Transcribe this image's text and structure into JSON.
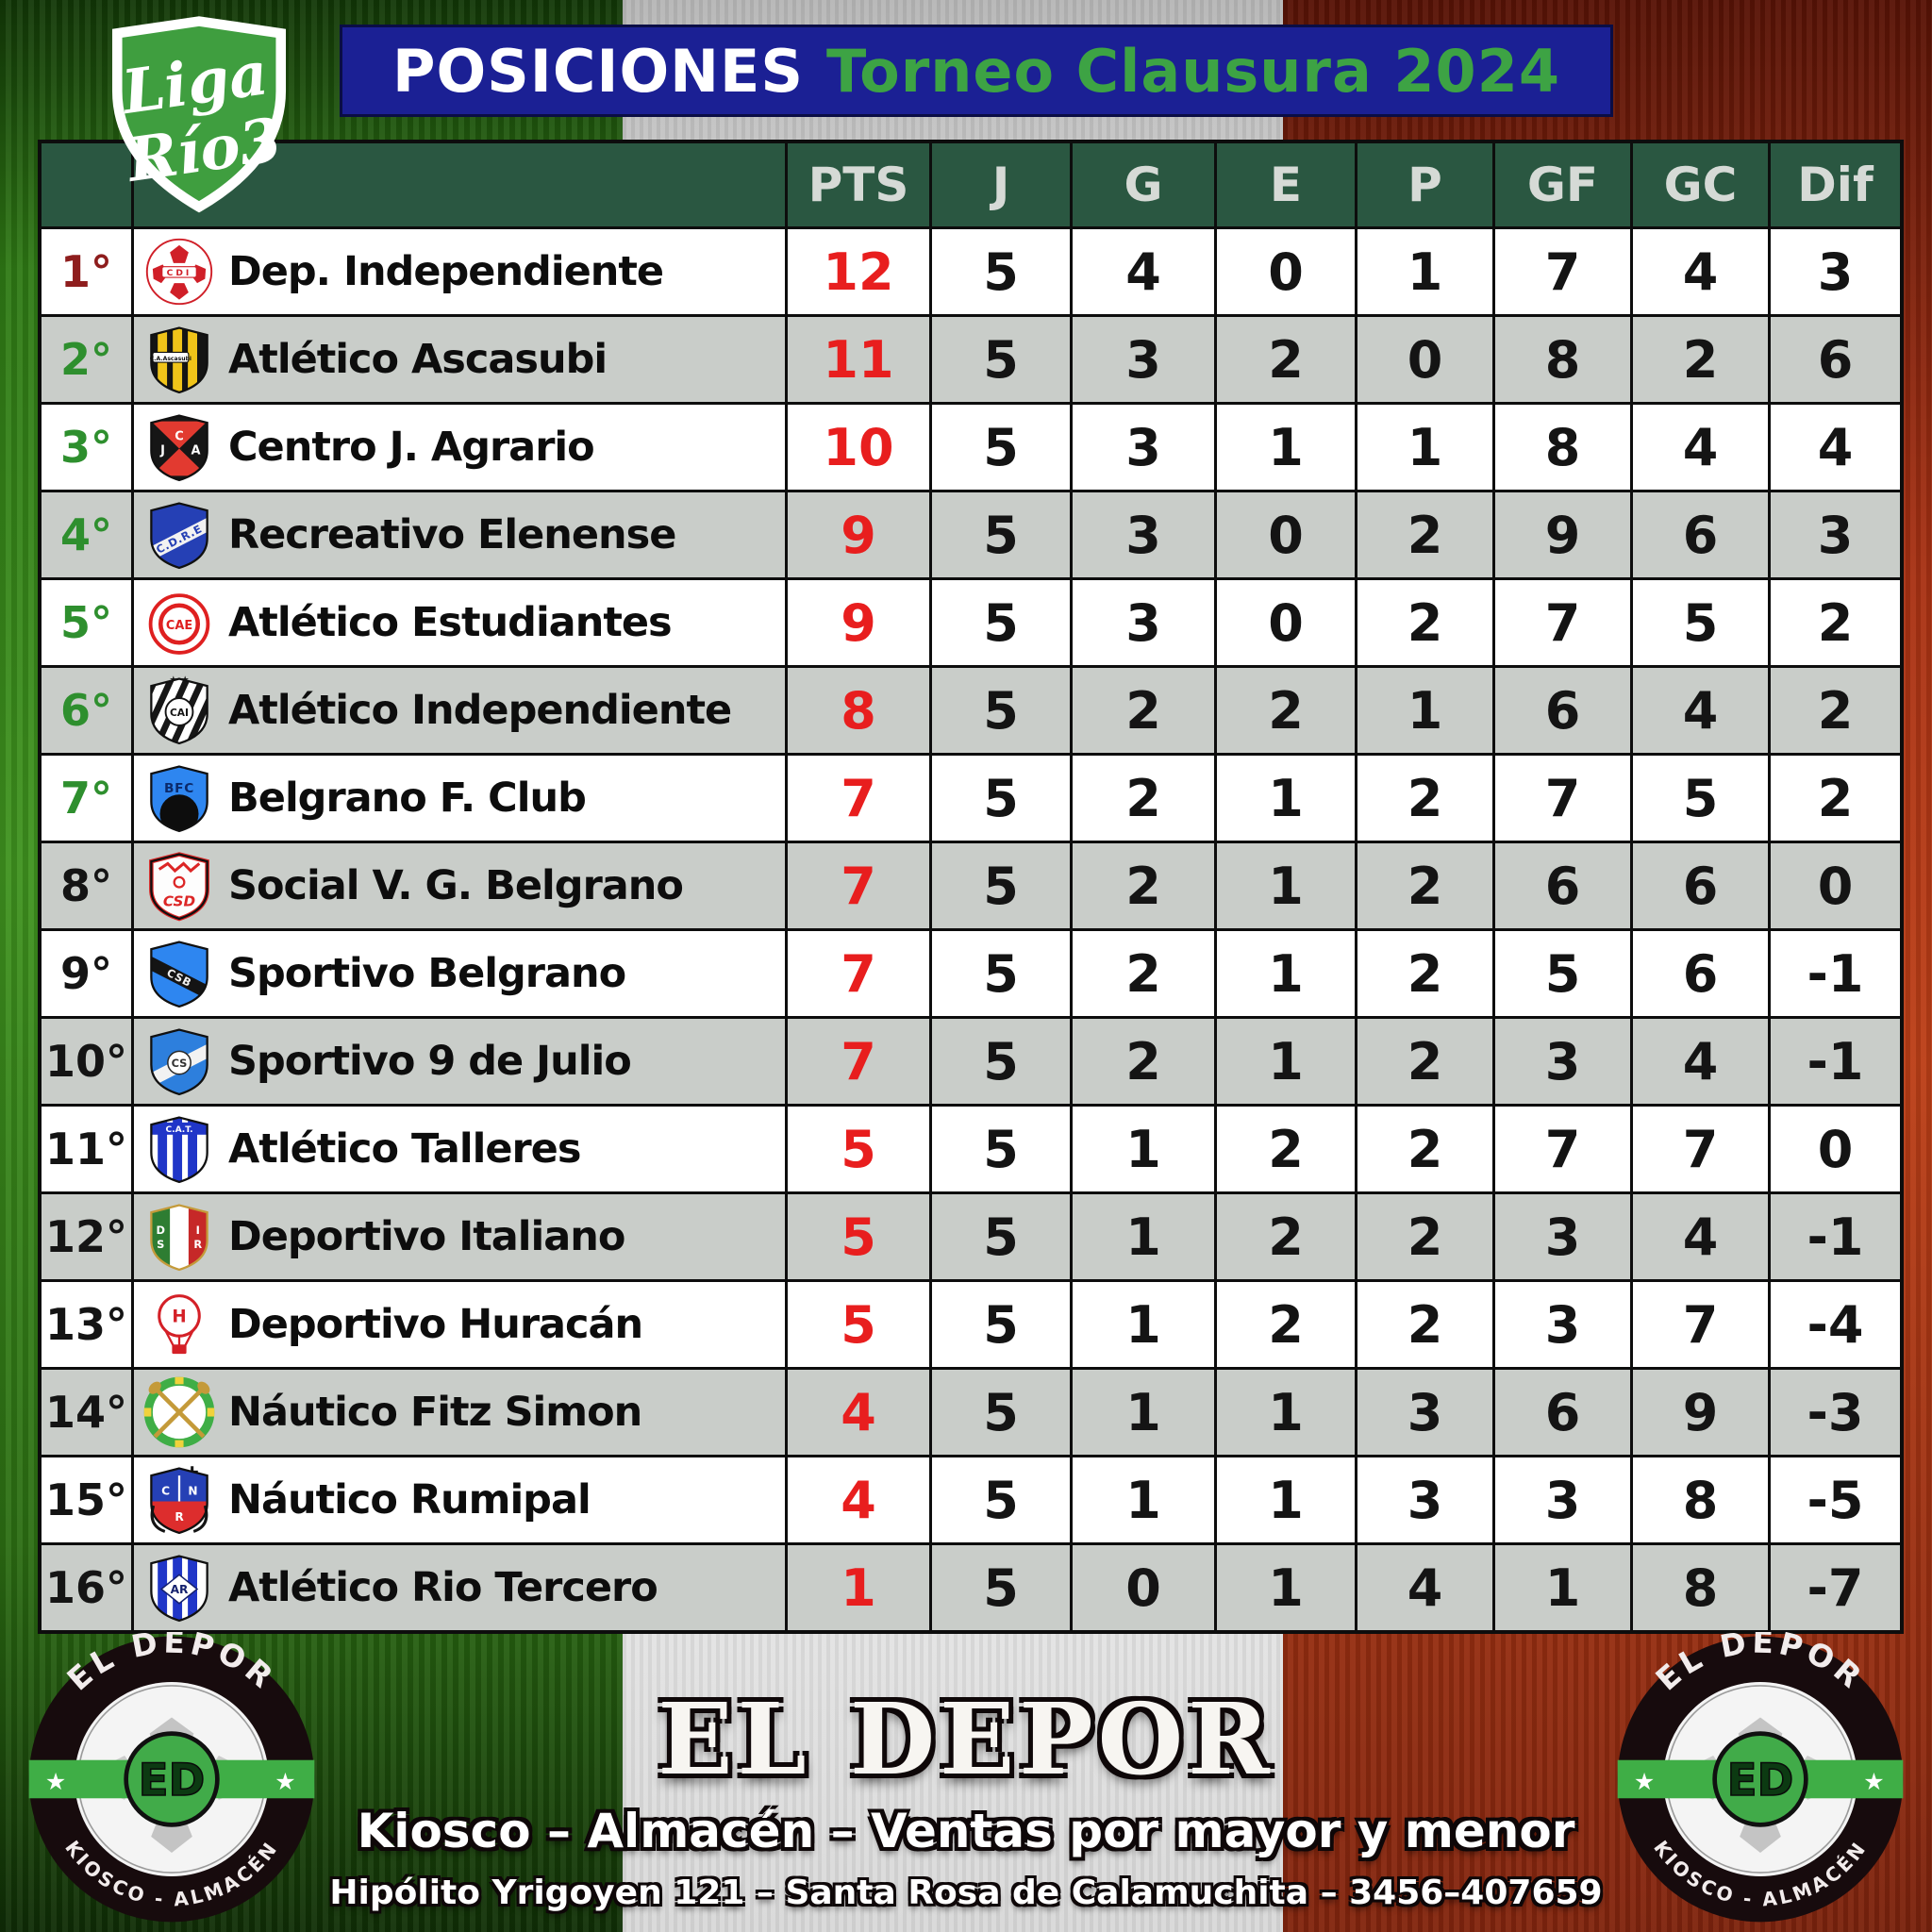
{
  "banner": {
    "title_white": "POSICIONES",
    "title_green": "Torneo Clausura 2024"
  },
  "league_logo": {
    "line1": "Liga",
    "line2": "Río3"
  },
  "table": {
    "headers": [
      "PTS",
      "J",
      "G",
      "E",
      "P",
      "GF",
      "GC",
      "Dif"
    ],
    "rows": [
      {
        "pos": "1°",
        "pos_color": "#8e1d1d",
        "team": "Dep. Independiente",
        "stats": [
          "12",
          "5",
          "4",
          "0",
          "1",
          "7",
          "4",
          "3"
        ],
        "logo": {
          "kind": "ball",
          "a": "#d01f28",
          "t": "CDI"
        }
      },
      {
        "pos": "2°",
        "pos_color": "#2e8f2e",
        "team": "Atlético Ascasubi",
        "stats": [
          "11",
          "5",
          "3",
          "2",
          "0",
          "8",
          "2",
          "6"
        ],
        "logo": {
          "kind": "vstripes",
          "base": "#141414",
          "stripe": "#f0c419",
          "plaque": "C.A.Ascasubi"
        }
      },
      {
        "pos": "3°",
        "pos_color": "#2e8f2e",
        "team": "Centro J. Agrario",
        "stats": [
          "10",
          "5",
          "3",
          "1",
          "1",
          "8",
          "4",
          "4"
        ],
        "logo": {
          "kind": "xshield",
          "base": "#161616",
          "a": "#e23a30",
          "l": [
            "C",
            "J",
            "A"
          ]
        }
      },
      {
        "pos": "4°",
        "pos_color": "#2e8f2e",
        "team": "Recreativo Elenense",
        "stats": [
          "9",
          "5",
          "3",
          "0",
          "2",
          "9",
          "6",
          "3"
        ],
        "logo": {
          "kind": "band",
          "bg": "#2540b5",
          "band": "#f2f2f2",
          "t": "C.D.R.E",
          "tc": "#2540b5",
          "dir": "up"
        }
      },
      {
        "pos": "5°",
        "pos_color": "#2e8f2e",
        "team": "Atlético Estudiantes",
        "stats": [
          "9",
          "5",
          "3",
          "0",
          "2",
          "7",
          "5",
          "2"
        ],
        "logo": {
          "kind": "ring",
          "a": "#df2020",
          "t": "CAE"
        }
      },
      {
        "pos": "6°",
        "pos_color": "#2e8f2e",
        "team": "Atlético Independiente",
        "stats": [
          "8",
          "5",
          "2",
          "2",
          "1",
          "6",
          "4",
          "2"
        ],
        "logo": {
          "kind": "diagstripes",
          "a": "#161616",
          "t": "CAI",
          "stars": "★ ★"
        }
      },
      {
        "pos": "7°",
        "pos_color": "#2e8f2e",
        "team": "Belgrano F. Club",
        "stats": [
          "7",
          "5",
          "2",
          "1",
          "2",
          "7",
          "5",
          "2"
        ],
        "logo": {
          "kind": "halfmoon",
          "bg": "#2e86f0",
          "a": "#0d0d0d",
          "t": "BFC",
          "tc": "#0b2a6b"
        }
      },
      {
        "pos": "8°",
        "pos_color": "#141414",
        "team": "Social V. G. Belgrano",
        "stats": [
          "7",
          "5",
          "2",
          "1",
          "2",
          "6",
          "6",
          "0"
        ],
        "logo": {
          "kind": "borders",
          "a": "#dc2626",
          "t": "CSD"
        }
      },
      {
        "pos": "9°",
        "pos_color": "#141414",
        "team": "Sportivo Belgrano",
        "stats": [
          "7",
          "5",
          "2",
          "1",
          "2",
          "5",
          "6",
          "-1"
        ],
        "logo": {
          "kind": "band",
          "bg": "#2e86f0",
          "band": "#141414",
          "t": "CSB",
          "tc": "#f2f2f2",
          "dir": "down"
        }
      },
      {
        "pos": "10°",
        "pos_color": "#141414",
        "team": "Sportivo 9 de Julio",
        "stats": [
          "7",
          "5",
          "2",
          "1",
          "2",
          "3",
          "4",
          "-1"
        ],
        "logo": {
          "kind": "band",
          "bg": "#2d7fdd",
          "band": "#f2f2f2",
          "t": "CS",
          "tc": "#333333",
          "dir": "up",
          "circle": true
        }
      },
      {
        "pos": "11°",
        "pos_color": "#141414",
        "team": "Atlético Talleres",
        "stats": [
          "5",
          "5",
          "1",
          "2",
          "2",
          "7",
          "7",
          "0"
        ],
        "logo": {
          "kind": "vstripes",
          "base": "#ffffff",
          "stripe": "#2036c8",
          "top": "C.A.T."
        }
      },
      {
        "pos": "12°",
        "pos_color": "#141414",
        "team": "Deportivo Italiano",
        "stats": [
          "5",
          "5",
          "1",
          "2",
          "2",
          "3",
          "4",
          "-1"
        ],
        "logo": {
          "kind": "tricolor",
          "l": [
            "D",
            "S",
            "I",
            "R"
          ]
        }
      },
      {
        "pos": "13°",
        "pos_color": "#141414",
        "team": "Deportivo Huracán",
        "stats": [
          "5",
          "5",
          "1",
          "2",
          "2",
          "3",
          "7",
          "-4"
        ],
        "logo": {
          "kind": "balloon",
          "a": "#d42027",
          "t": "H"
        }
      },
      {
        "pos": "14°",
        "pos_color": "#141414",
        "team": "Náutico Fitz Simon",
        "stats": [
          "4",
          "5",
          "1",
          "1",
          "3",
          "6",
          "9",
          "-3"
        ],
        "logo": {
          "kind": "oars",
          "g": "#3fae46",
          "o": "#c49a39"
        }
      },
      {
        "pos": "15°",
        "pos_color": "#141414",
        "team": "Náutico Rumipal",
        "stats": [
          "4",
          "5",
          "1",
          "1",
          "3",
          "3",
          "8",
          "-5"
        ],
        "logo": {
          "kind": "anchor",
          "top": "#2540b5",
          "bot": "#dd2d2d",
          "l": [
            "C",
            "N",
            "R"
          ]
        }
      },
      {
        "pos": "16°",
        "pos_color": "#141414",
        "team": "Atlético Rio Tercero",
        "stats": [
          "1",
          "5",
          "0",
          "1",
          "4",
          "1",
          "8",
          "-7"
        ],
        "logo": {
          "kind": "vstripes",
          "base": "#ffffff",
          "stripe": "#2036c8",
          "diamond": "AR"
        }
      }
    ]
  },
  "footer": {
    "shop_name": "EL DEPOR",
    "line1": "Kiosco – Almacén – Ventas por mayor y menor",
    "line2": "Hipólito Yrigoyen 121 – Santa Rosa de Calamuchita – 3456–407659",
    "badge": {
      "top": "EL DEPOR",
      "bottom": "KIOSCO - ALMACÉN",
      "center": "ED"
    }
  },
  "colors": {
    "banner_bg": "#1b2094",
    "banner_green_text": "#3da344",
    "header_bg": "#2a5741",
    "row_white": "#ffffff",
    "row_gray": "#c9cdc9",
    "pts_red": "#e81e1e",
    "pos_green": "#2e8f2e",
    "pos_first_maroon": "#8e1d1d",
    "pos_rest": "#141414",
    "flag_green": "#2f7a15",
    "flag_red": "#a93214"
  }
}
